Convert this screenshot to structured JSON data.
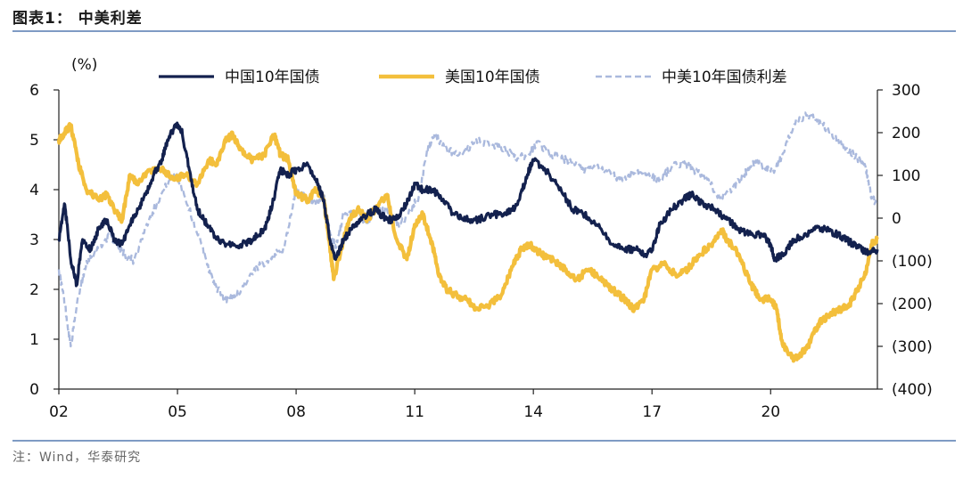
{
  "header": {
    "title": "图表1：  中美利差"
  },
  "footer": {
    "source": "注：Wind，华泰研究"
  },
  "colors": {
    "china": "#13214e",
    "us": "#f3bf3c",
    "spread": "#aab9dd",
    "rule": "#7f9bc4"
  },
  "chart_data": {
    "type": "line",
    "title": "",
    "ylabel_left": "(%)",
    "ylim_left": [
      0,
      6
    ],
    "ylim_right": [
      -400,
      300
    ],
    "yticks_left": [
      "0",
      "1",
      "2",
      "3",
      "4",
      "5",
      "6"
    ],
    "yticks_right": [
      "(400)",
      "(300)",
      "(200)",
      "(100)",
      "0",
      "100",
      "200",
      "300"
    ],
    "xlim": [
      2002,
      2022.7
    ],
    "xticks": [
      {
        "year": 2002,
        "label": "02"
      },
      {
        "year": 2005,
        "label": "05"
      },
      {
        "year": 2008,
        "label": "08"
      },
      {
        "year": 2011,
        "label": "11"
      },
      {
        "year": 2014,
        "label": "14"
      },
      {
        "year": 2017,
        "label": "17"
      },
      {
        "year": 2020,
        "label": "20"
      }
    ],
    "legend_position": "top",
    "series": [
      {
        "name": "中国10年国债",
        "axis": "left",
        "style": "solid",
        "x": [
          2002.0,
          2002.15,
          2002.3,
          2002.45,
          2002.6,
          2002.8,
          2003.0,
          2003.2,
          2003.4,
          2003.6,
          2003.8,
          2004.0,
          2004.2,
          2004.4,
          2004.6,
          2004.75,
          2004.95,
          2005.1,
          2005.3,
          2005.5,
          2005.75,
          2006.0,
          2006.3,
          2006.6,
          2006.9,
          2007.2,
          2007.4,
          2007.6,
          2007.8,
          2008.0,
          2008.3,
          2008.5,
          2008.7,
          2008.85,
          2009.0,
          2009.2,
          2009.4,
          2009.6,
          2009.8,
          2010.0,
          2010.3,
          2010.5,
          2010.7,
          2010.9,
          2011.0,
          2011.2,
          2011.45,
          2011.7,
          2012.0,
          2012.3,
          2012.6,
          2013.0,
          2013.3,
          2013.6,
          2013.85,
          2014.0,
          2014.3,
          2014.6,
          2015.0,
          2015.3,
          2015.6,
          2016.0,
          2016.3,
          2016.6,
          2016.85,
          2017.0,
          2017.2,
          2017.5,
          2017.8,
          2018.0,
          2018.3,
          2018.6,
          2018.9,
          2019.2,
          2019.5,
          2019.8,
          2020.0,
          2020.1,
          2020.3,
          2020.6,
          2020.9,
          2021.2,
          2021.4,
          2021.7,
          2022.0,
          2022.3,
          2022.5,
          2022.7
        ],
        "values": [
          3.0,
          3.7,
          2.6,
          2.1,
          3.0,
          2.8,
          3.2,
          3.4,
          3.0,
          2.9,
          3.3,
          3.6,
          3.9,
          4.3,
          4.6,
          5.0,
          5.3,
          5.2,
          4.4,
          3.6,
          3.3,
          3.0,
          2.9,
          2.9,
          3.0,
          3.2,
          3.7,
          4.4,
          4.3,
          4.4,
          4.5,
          4.2,
          3.8,
          3.0,
          2.6,
          3.0,
          3.2,
          3.4,
          3.5,
          3.6,
          3.4,
          3.4,
          3.6,
          3.9,
          4.1,
          4.0,
          4.0,
          3.8,
          3.5,
          3.4,
          3.4,
          3.5,
          3.5,
          3.7,
          4.3,
          4.6,
          4.4,
          4.1,
          3.6,
          3.5,
          3.3,
          2.9,
          2.8,
          2.8,
          2.7,
          2.8,
          3.3,
          3.6,
          3.8,
          3.9,
          3.7,
          3.6,
          3.4,
          3.2,
          3.1,
          3.1,
          2.9,
          2.6,
          2.7,
          3.0,
          3.1,
          3.25,
          3.2,
          3.1,
          2.95,
          2.8,
          2.75,
          2.8
        ]
      },
      {
        "name": "美国10年国债",
        "axis": "left",
        "style": "solid",
        "x": [
          2002.0,
          2002.1,
          2002.3,
          2002.5,
          2002.7,
          2003.0,
          2003.2,
          2003.4,
          2003.6,
          2003.8,
          2004.0,
          2004.3,
          2004.6,
          2004.9,
          2005.2,
          2005.5,
          2005.8,
          2006.0,
          2006.2,
          2006.4,
          2006.6,
          2006.9,
          2007.2,
          2007.45,
          2007.6,
          2007.8,
          2008.0,
          2008.3,
          2008.5,
          2008.7,
          2008.85,
          2008.95,
          2009.2,
          2009.4,
          2009.6,
          2009.8,
          2010.0,
          2010.3,
          2010.5,
          2010.8,
          2011.0,
          2011.2,
          2011.45,
          2011.6,
          2011.8,
          2012.0,
          2012.3,
          2012.6,
          2012.9,
          2013.2,
          2013.5,
          2013.7,
          2013.9,
          2014.2,
          2014.5,
          2014.8,
          2015.1,
          2015.4,
          2015.7,
          2016.0,
          2016.3,
          2016.55,
          2016.8,
          2017.0,
          2017.3,
          2017.6,
          2017.9,
          2018.2,
          2018.5,
          2018.75,
          2018.9,
          2019.2,
          2019.5,
          2019.75,
          2020.0,
          2020.15,
          2020.3,
          2020.6,
          2020.9,
          2021.2,
          2021.5,
          2021.8,
          2022.0,
          2022.2,
          2022.4,
          2022.55,
          2022.7
        ],
        "values": [
          5.0,
          5.1,
          5.3,
          4.5,
          4.0,
          3.8,
          3.9,
          3.6,
          3.4,
          4.3,
          4.1,
          4.4,
          4.4,
          4.2,
          4.3,
          4.1,
          4.6,
          4.5,
          5.0,
          5.1,
          4.8,
          4.6,
          4.7,
          5.1,
          4.7,
          4.6,
          3.9,
          3.8,
          4.0,
          3.8,
          2.9,
          2.2,
          3.0,
          3.5,
          3.6,
          3.4,
          3.6,
          3.9,
          3.1,
          2.6,
          3.3,
          3.5,
          2.9,
          2.3,
          2.0,
          1.9,
          1.8,
          1.6,
          1.7,
          1.9,
          2.5,
          2.8,
          2.9,
          2.7,
          2.6,
          2.4,
          2.2,
          2.4,
          2.2,
          2.0,
          1.8,
          1.6,
          1.8,
          2.4,
          2.5,
          2.3,
          2.4,
          2.7,
          2.9,
          3.2,
          3.0,
          2.7,
          2.1,
          1.8,
          1.8,
          1.6,
          0.9,
          0.6,
          0.8,
          1.3,
          1.5,
          1.6,
          1.7,
          2.0,
          2.3,
          2.9,
          3.0
        ]
      },
      {
        "name": "中美10年国债利差",
        "axis": "right",
        "style": "dashed",
        "x": [
          2002.0,
          2002.15,
          2002.3,
          2002.5,
          2002.7,
          2003.0,
          2003.3,
          2003.6,
          2003.9,
          2004.2,
          2004.5,
          2004.8,
          2005.0,
          2005.3,
          2005.6,
          2005.9,
          2006.2,
          2006.5,
          2006.8,
          2007.1,
          2007.4,
          2007.7,
          2008.0,
          2008.3,
          2008.5,
          2008.7,
          2008.85,
          2009.0,
          2009.2,
          2009.5,
          2009.8,
          2010.0,
          2010.3,
          2010.6,
          2010.9,
          2011.1,
          2011.3,
          2011.5,
          2011.7,
          2012.0,
          2012.3,
          2012.6,
          2013.0,
          2013.3,
          2013.6,
          2013.9,
          2014.1,
          2014.4,
          2014.7,
          2015.0,
          2015.3,
          2015.6,
          2016.0,
          2016.3,
          2016.6,
          2016.9,
          2017.2,
          2017.5,
          2017.8,
          2018.1,
          2018.4,
          2018.7,
          2019.0,
          2019.3,
          2019.6,
          2019.9,
          2020.1,
          2020.3,
          2020.6,
          2020.9,
          2021.2,
          2021.5,
          2021.8,
          2022.1,
          2022.4,
          2022.55,
          2022.7
        ],
        "values": [
          -120,
          -200,
          -300,
          -180,
          -100,
          -70,
          -40,
          -80,
          -100,
          -20,
          40,
          90,
          100,
          20,
          -60,
          -150,
          -190,
          -180,
          -140,
          -110,
          -90,
          -70,
          70,
          40,
          30,
          50,
          -30,
          -70,
          10,
          10,
          -10,
          20,
          20,
          -20,
          20,
          50,
          150,
          200,
          170,
          150,
          160,
          180,
          170,
          160,
          140,
          150,
          180,
          150,
          140,
          130,
          110,
          120,
          100,
          90,
          110,
          100,
          90,
          120,
          130,
          110,
          90,
          50,
          60,
          100,
          130,
          120,
          110,
          150,
          220,
          240,
          230,
          200,
          170,
          150,
          120,
          50,
          30
        ]
      }
    ]
  }
}
